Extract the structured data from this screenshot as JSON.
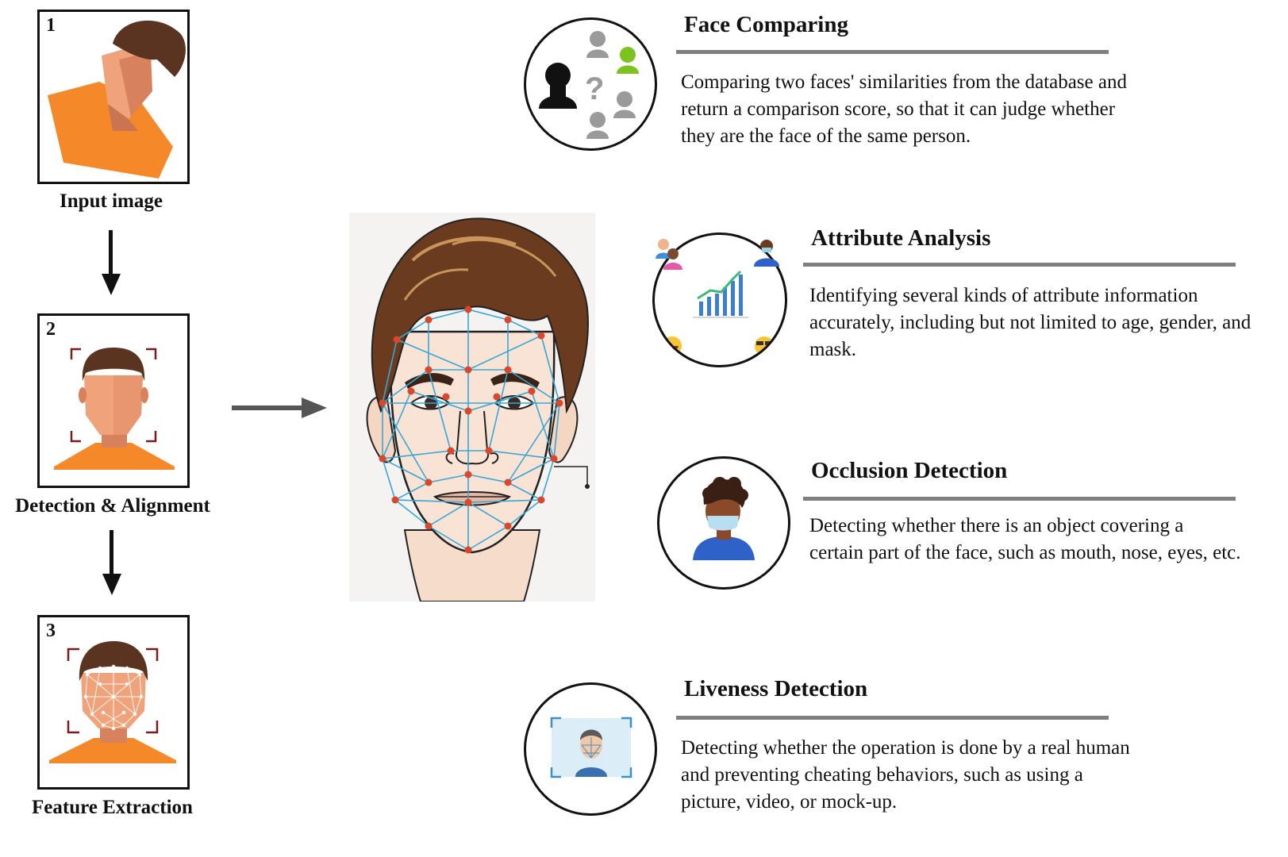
{
  "steps": [
    {
      "number": "1",
      "caption": "Input image"
    },
    {
      "number": "2",
      "caption": "Detection & Alignment"
    },
    {
      "number": "3",
      "caption": "Feature Extraction"
    }
  ],
  "features": [
    {
      "title": "Face Comparing",
      "description": "Comparing two faces' similarities from the database and return a comparison score, so that it can judge whether they are the face of the same person.",
      "icon": "face-compare-icon"
    },
    {
      "title": "Attribute Analysis",
      "description": "Identifying several kinds of attribute information accurately, including but not limited to age, gender, and mask.",
      "icon": "attribute-chart-icon"
    },
    {
      "title": "Occlusion Detection",
      "description": "Detecting whether there is an object covering a certain part of the face, such as mouth, nose, eyes, etc.",
      "icon": "masked-person-icon"
    },
    {
      "title": "Liveness Detection",
      "description": "Detecting whether the operation is done by a real human and preventing cheating behaviors, such as using a picture, video, or mock-up.",
      "icon": "liveness-scan-icon"
    }
  ],
  "colors": {
    "shirt": "#f5892a",
    "skin": "#f0a27a",
    "skin_shadow": "#d8815d",
    "hair": "#5a3420",
    "mesh": "#35a7d8",
    "landmark": "#d9482b",
    "rule": "#7f7f7f"
  }
}
